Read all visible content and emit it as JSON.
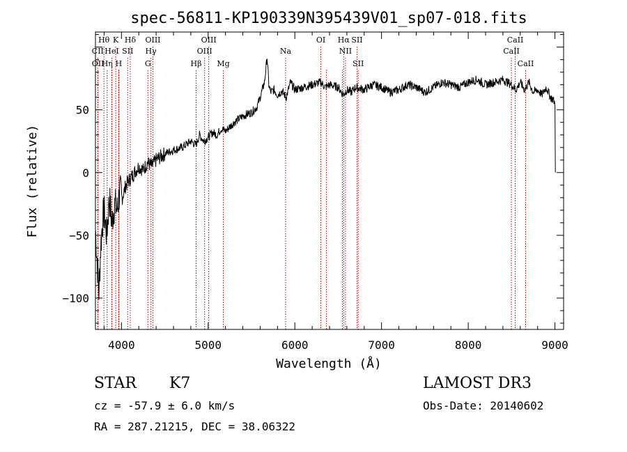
{
  "chart_data": {
    "type": "line",
    "title": "spec-56811-KP190339N395439V01_sp07-018.fits",
    "xlabel": "Wavelength (Å)",
    "ylabel": "Flux (relative)",
    "xlim": [
      3700,
      9100
    ],
    "ylim": [
      -125,
      112
    ],
    "x_ticks": [
      4000,
      5000,
      6000,
      7000,
      8000,
      9000
    ],
    "y_ticks": [
      -100,
      -50,
      0,
      50
    ],
    "grid": false,
    "series": [
      {
        "name": "flux",
        "x": [
          3700,
          3720,
          3740,
          3760,
          3780,
          3800,
          3830,
          3860,
          3890,
          3920,
          3950,
          3980,
          4010,
          4050,
          4100,
          4150,
          4200,
          4250,
          4300,
          4350,
          4400,
          4500,
          4600,
          4700,
          4800,
          4860,
          4900,
          4950,
          5000,
          5050,
          5100,
          5150,
          5200,
          5300,
          5400,
          5500,
          5560,
          5600,
          5650,
          5680,
          5700,
          5720,
          5760,
          5800,
          5850,
          5900,
          5950,
          6000,
          6100,
          6200,
          6300,
          6350,
          6400,
          6500,
          6560,
          6600,
          6650,
          6700,
          6800,
          6900,
          7000,
          7100,
          7200,
          7300,
          7400,
          7500,
          7600,
          7700,
          7800,
          7900,
          8000,
          8100,
          8200,
          8300,
          8400,
          8500,
          8550,
          8600,
          8650,
          8700,
          8750,
          8800,
          8850,
          8900,
          8950,
          8980,
          9000,
          9005
        ],
        "y": [
          -45,
          -70,
          -95,
          -60,
          -40,
          -30,
          -50,
          -20,
          -40,
          -25,
          -30,
          -15,
          -20,
          -10,
          -5,
          0,
          5,
          2,
          8,
          5,
          10,
          15,
          18,
          20,
          25,
          22,
          30,
          25,
          28,
          32,
          30,
          35,
          33,
          40,
          45,
          48,
          52,
          60,
          72,
          92,
          70,
          64,
          66,
          62,
          65,
          60,
          72,
          66,
          68,
          70,
          72,
          68,
          70,
          68,
          62,
          66,
          64,
          68,
          66,
          70,
          68,
          64,
          66,
          70,
          68,
          64,
          68,
          72,
          70,
          68,
          72,
          74,
          70,
          72,
          74,
          70,
          66,
          72,
          66,
          72,
          64,
          66,
          62,
          68,
          60,
          58,
          55,
          0
        ]
      }
    ],
    "line_markers": [
      {
        "label": "Hθ",
        "x": 3798,
        "row": 1
      },
      {
        "label": "K",
        "x": 3934,
        "row": 1
      },
      {
        "label": "Hδ",
        "x": 4102,
        "row": 1
      },
      {
        "label": "OIII",
        "x": 4363,
        "row": 1
      },
      {
        "label": "OIII",
        "x": 5007,
        "row": 1
      },
      {
        "label": "OI",
        "x": 6300,
        "row": 1
      },
      {
        "label": "Hα",
        "x": 6563,
        "row": 1
      },
      {
        "label": "SII",
        "x": 6717,
        "row": 1
      },
      {
        "label": "CaII",
        "x": 8542,
        "row": 1
      },
      {
        "label": "CII",
        "x": 3727,
        "row": 2
      },
      {
        "label": "HeI",
        "x": 3889,
        "row": 2
      },
      {
        "label": "SII",
        "x": 4072,
        "row": 2
      },
      {
        "label": "Hγ",
        "x": 4340,
        "row": 2
      },
      {
        "label": "OIII",
        "x": 4959,
        "row": 2
      },
      {
        "label": "Na",
        "x": 5893,
        "row": 2
      },
      {
        "label": "NII",
        "x": 6584,
        "row": 2
      },
      {
        "label": "CaII",
        "x": 8498,
        "row": 2
      },
      {
        "label": "OII",
        "x": 3729,
        "row": 3
      },
      {
        "label": "Hη",
        "x": 3835,
        "row": 3
      },
      {
        "label": "H",
        "x": 3969,
        "row": 3
      },
      {
        "label": "G",
        "x": 4305,
        "row": 3
      },
      {
        "label": "Hβ",
        "x": 4861,
        "row": 3
      },
      {
        "label": "Mg",
        "x": 5175,
        "row": 3
      },
      {
        "label": "SII",
        "x": 6731,
        "row": 3
      },
      {
        "label": "CaII",
        "x": 8662,
        "row": 3
      }
    ],
    "extra_marker_lines": [
      3890,
      3970,
      6365,
      6548
    ]
  },
  "info": {
    "class_label": "STAR",
    "subclass_label": "K7",
    "survey_label": "LAMOST DR3",
    "cz_text": "cz = -57.9 ± 6.0 km/s",
    "obs_date_text": "Obs-Date: 20140602",
    "radec_text": "RA = 287.21215, DEC =  38.06322"
  }
}
